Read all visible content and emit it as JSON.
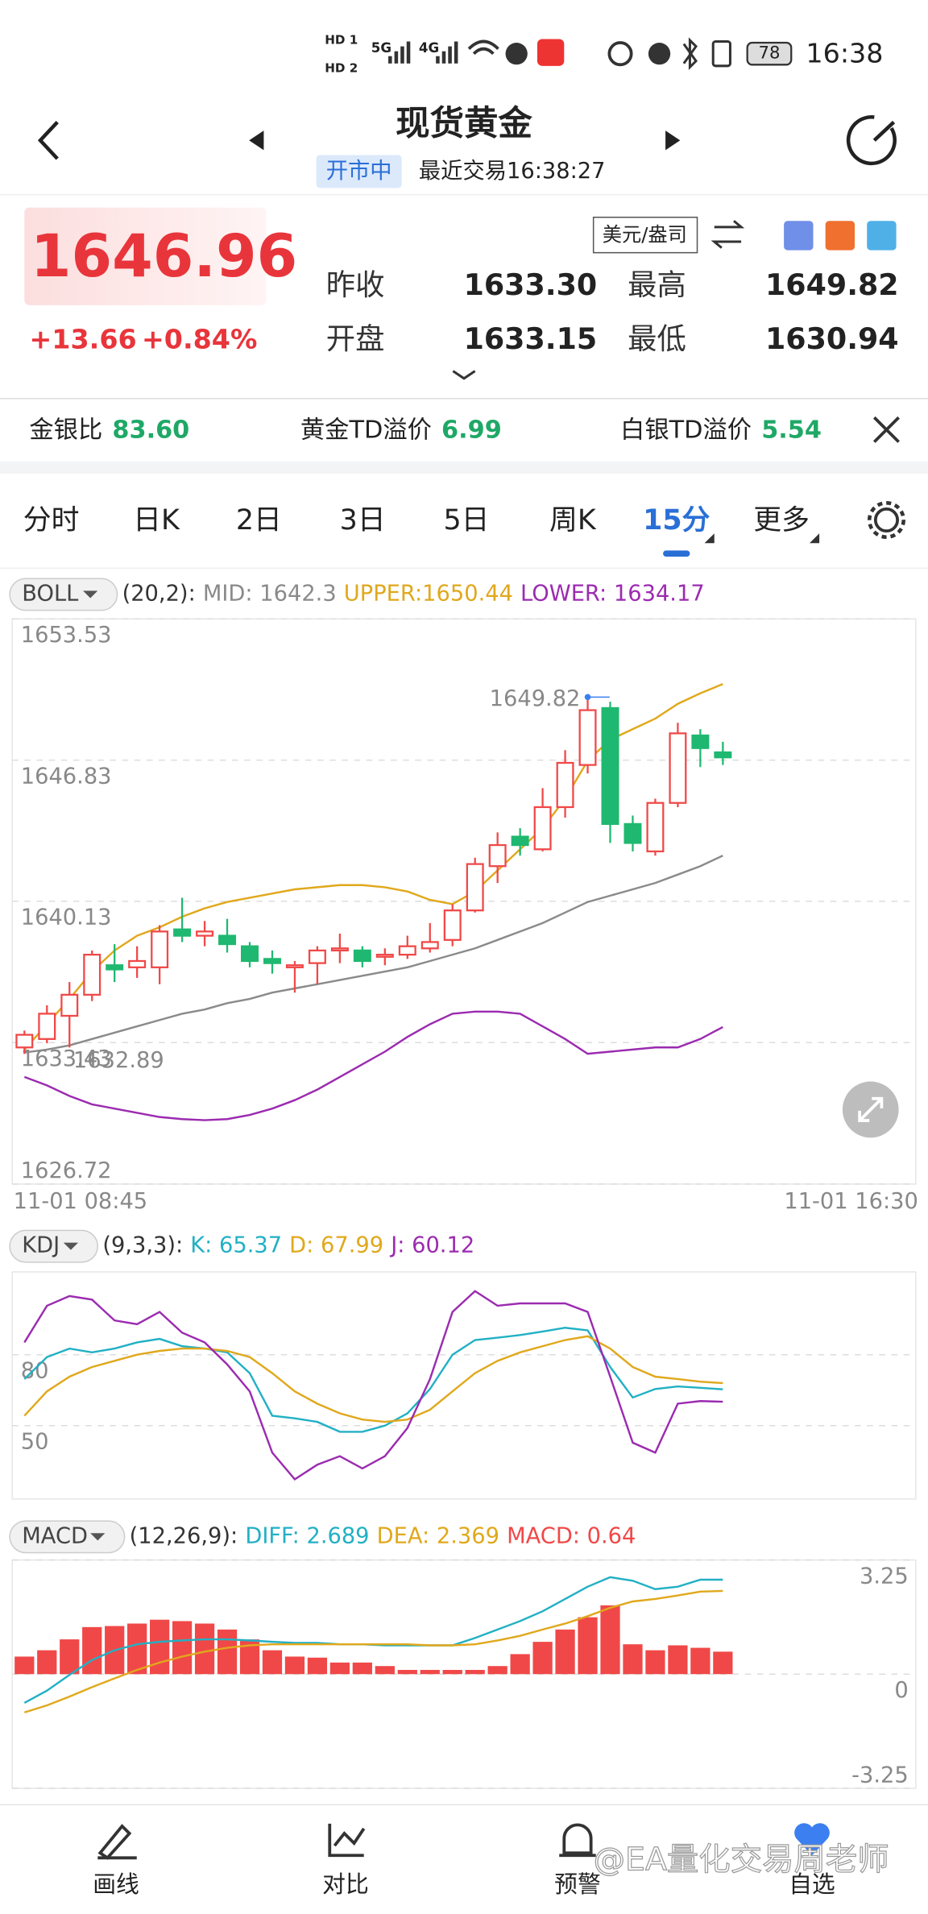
{
  "status_bar": {
    "hd1": "HD 1",
    "hd2": "HD 2",
    "net1": "5G",
    "net2": "4G",
    "battery": "78",
    "time": "16:38"
  },
  "header": {
    "title": "现货黄金",
    "status": "开市中",
    "last_trade": "最近交易16:38:27"
  },
  "quote": {
    "price": "1646.96",
    "change": "+13.66",
    "change_pct": "+0.84%",
    "unit": "美元/盎司",
    "fields": [
      {
        "label": "昨收",
        "value": "1633.30"
      },
      {
        "label": "最高",
        "value": "1649.82"
      },
      {
        "label": "开盘",
        "value": "1633.15"
      },
      {
        "label": "最低",
        "value": "1630.94"
      }
    ]
  },
  "ratios": [
    {
      "label": "金银比",
      "value": "83.60"
    },
    {
      "label": "黄金TD溢价",
      "value": "6.99"
    },
    {
      "label": "白银TD溢价",
      "value": "5.54"
    }
  ],
  "tabs": {
    "items": [
      "分时",
      "日K",
      "2日",
      "3日",
      "5日",
      "周K",
      "15分",
      "更多"
    ],
    "active": 6
  },
  "chart_data": [
    {
      "type": "candlestick",
      "indicator": "BOLL",
      "params": "(20,2):",
      "categories": [
        "11-01 08:45",
        null,
        null,
        null,
        null,
        null,
        null,
        null,
        null,
        null,
        null,
        null,
        null,
        null,
        null,
        null,
        null,
        null,
        null,
        null,
        null,
        null,
        null,
        null,
        null,
        null,
        null,
        null,
        null,
        null,
        null,
        "11-01 16:30"
      ],
      "open": [
        1633.2,
        1633.6,
        1634.7,
        1635.7,
        1637.1,
        1637.0,
        1637.0,
        1638.8,
        1638.5,
        1638.5,
        1638.0,
        1637.4,
        1637.0,
        1637.2,
        1637.8,
        1637.8,
        1637.5,
        1637.6,
        1637.9,
        1638.3,
        1639.7,
        1641.8,
        1643.2,
        1642.6,
        1644.6,
        1646.6,
        1649.3,
        1643.8,
        1642.5,
        1644.8,
        1648.0,
        1647.2
      ],
      "high": [
        1634.0,
        1635.2,
        1636.3,
        1637.8,
        1638.1,
        1638.0,
        1639.0,
        1640.3,
        1639.2,
        1639.3,
        1638.2,
        1637.8,
        1637.3,
        1638.0,
        1638.6,
        1638.0,
        1637.9,
        1638.5,
        1639.1,
        1640.0,
        1642.2,
        1643.4,
        1643.6,
        1645.5,
        1647.3,
        1649.82,
        1649.6,
        1644.2,
        1645.0,
        1648.6,
        1648.3,
        1647.7
      ],
      "low": [
        1632.89,
        1633.4,
        1633.2,
        1635.4,
        1636.3,
        1636.5,
        1636.2,
        1638.2,
        1638.0,
        1637.7,
        1637.0,
        1636.7,
        1635.8,
        1636.2,
        1637.2,
        1637.0,
        1637.1,
        1637.4,
        1637.7,
        1638.0,
        1639.6,
        1641.0,
        1642.3,
        1642.5,
        1644.1,
        1646.2,
        1642.9,
        1642.5,
        1642.3,
        1644.6,
        1646.5,
        1646.6
      ],
      "close": [
        1633.8,
        1634.8,
        1635.7,
        1637.6,
        1636.9,
        1637.3,
        1638.7,
        1638.5,
        1638.7,
        1638.1,
        1637.3,
        1637.2,
        1637.1,
        1637.8,
        1637.9,
        1637.3,
        1637.6,
        1638.0,
        1638.2,
        1639.7,
        1641.9,
        1642.8,
        1642.8,
        1644.6,
        1646.7,
        1649.2,
        1643.8,
        1642.9,
        1644.8,
        1648.1,
        1647.4,
        1646.96
      ],
      "up_color": "#f04848",
      "down_color": "#1fb870",
      "series": [
        {
          "name": "MID: 1642.3",
          "color": "#8a8a8a",
          "values": [
            1632.96,
            1633.1,
            1633.3,
            1633.6,
            1633.9,
            1634.2,
            1634.5,
            1634.8,
            1635.0,
            1635.3,
            1635.5,
            1635.8,
            1636.0,
            1636.2,
            1636.4,
            1636.6,
            1636.8,
            1637.0,
            1637.3,
            1637.6,
            1637.9,
            1638.3,
            1638.7,
            1639.1,
            1639.6,
            1640.1,
            1640.4,
            1640.7,
            1641.0,
            1641.4,
            1641.8,
            1642.3
          ]
        },
        {
          "name": "UPPER:1650.44",
          "color": "#e0a81c",
          "values": [
            1633.1,
            1634.3,
            1635.5,
            1636.8,
            1637.8,
            1638.5,
            1638.9,
            1639.4,
            1639.8,
            1640.1,
            1640.3,
            1640.5,
            1640.7,
            1640.8,
            1640.9,
            1640.9,
            1640.8,
            1640.6,
            1640.2,
            1640.0,
            1640.6,
            1641.6,
            1642.6,
            1643.6,
            1645.0,
            1646.8,
            1647.8,
            1648.3,
            1648.8,
            1649.5,
            1650.0,
            1650.44
          ]
        },
        {
          "name": "LOWER: 1634.17",
          "color": "#9b2bb0",
          "values": [
            1631.8,
            1631.4,
            1630.9,
            1630.5,
            1630.3,
            1630.1,
            1629.9,
            1629.8,
            1629.75,
            1629.8,
            1630.0,
            1630.3,
            1630.7,
            1631.2,
            1631.8,
            1632.4,
            1633.0,
            1633.7,
            1634.3,
            1634.8,
            1634.9,
            1634.9,
            1634.8,
            1634.2,
            1633.6,
            1632.9,
            1633.0,
            1633.1,
            1633.2,
            1633.2,
            1633.6,
            1634.17
          ]
        }
      ],
      "max_label": "1649.82",
      "min_label": "1632.89",
      "ylim": [
        1626.72,
        1653.53
      ],
      "yticks": [
        1653.53,
        1646.83,
        1640.13,
        1633.43,
        1626.72
      ],
      "grid": true,
      "axis_side": "left"
    },
    {
      "type": "line",
      "indicator": "KDJ",
      "params": "(9,3,3):",
      "series": [
        {
          "name": "K: 65.37",
          "color": "#22b0c4",
          "values": [
            69.7,
            79.0,
            82.6,
            81.0,
            82.6,
            85.2,
            86.7,
            83.6,
            82.6,
            81.0,
            72.2,
            54.2,
            53.1,
            51.6,
            47.4,
            47.4,
            50.0,
            55.2,
            65.5,
            80.0,
            86.2,
            87.2,
            88.3,
            89.8,
            91.4,
            90.3,
            74.8,
            61.9,
            65.5,
            66.6,
            66.0,
            65.37
          ]
        },
        {
          "name": "D: 67.99",
          "color": "#e0a81c",
          "values": [
            54.2,
            64.5,
            70.7,
            74.8,
            77.4,
            80.0,
            81.6,
            82.6,
            82.6,
            81.6,
            79.0,
            72.2,
            64.5,
            59.3,
            55.2,
            52.6,
            51.6,
            52.6,
            56.7,
            64.5,
            72.2,
            77.4,
            81.0,
            83.6,
            86.2,
            87.8,
            82.6,
            74.8,
            70.7,
            69.7,
            68.6,
            67.99
          ]
        },
        {
          "name": "J: 60.12",
          "color": "#9b2bb0",
          "values": [
            85.2,
            100.7,
            104.8,
            103.3,
            94.5,
            92.9,
            98.1,
            89.3,
            85.2,
            75.9,
            64.5,
            38.6,
            27.3,
            33.5,
            37.1,
            31.9,
            37.1,
            49.0,
            69.7,
            98.1,
            106.9,
            100.7,
            101.7,
            101.7,
            101.7,
            98.1,
            70.7,
            42.8,
            38.6,
            59.3,
            60.4,
            60.12
          ]
        }
      ],
      "ylim": [
        19,
        115
      ],
      "yticks": [
        80,
        50
      ],
      "grid": true,
      "axis_side": "left"
    },
    {
      "type": "bar",
      "indicator": "MACD",
      "params": "(12,26,9):",
      "series": [
        {
          "name": "DIFF: 2.689",
          "color": "#22b0c4",
          "kind": "line",
          "values": [
            -0.82,
            -0.47,
            -0.02,
            0.4,
            0.68,
            0.85,
            0.92,
            0.96,
            0.99,
            0.99,
            0.96,
            0.92,
            0.89,
            0.89,
            0.85,
            0.85,
            0.82,
            0.82,
            0.82,
            0.82,
            1.03,
            1.27,
            1.51,
            1.79,
            2.14,
            2.49,
            2.76,
            2.66,
            2.42,
            2.49,
            2.69,
            2.689
          ]
        },
        {
          "name": "DEA: 2.369",
          "color": "#e0a81c",
          "kind": "line",
          "values": [
            -1.09,
            -0.89,
            -0.64,
            -0.37,
            -0.12,
            0.12,
            0.33,
            0.5,
            0.64,
            0.75,
            0.82,
            0.85,
            0.85,
            0.85,
            0.85,
            0.85,
            0.85,
            0.85,
            0.82,
            0.82,
            0.85,
            0.96,
            1.09,
            1.27,
            1.44,
            1.65,
            1.89,
            2.07,
            2.14,
            2.24,
            2.35,
            2.369
          ]
        },
        {
          "name": "MACD: 0.64",
          "color": "#f04848",
          "kind": "bar",
          "values": [
            0.5,
            0.68,
            0.99,
            1.34,
            1.37,
            1.44,
            1.55,
            1.51,
            1.44,
            1.27,
            0.99,
            0.68,
            0.5,
            0.47,
            0.33,
            0.33,
            0.23,
            0.12,
            0.12,
            0.12,
            0.12,
            0.23,
            0.57,
            0.92,
            1.27,
            1.62,
            1.96,
            0.85,
            0.68,
            0.82,
            0.75,
            0.64
          ]
        }
      ],
      "ylim": [
        -3.25,
        3.25
      ],
      "yticks": [
        3.25,
        0,
        -3.25
      ],
      "grid": true,
      "axis_side": "right"
    }
  ],
  "nav": [
    "画线",
    "对比",
    "预警",
    "自选"
  ],
  "watermark": "@EA量化交易周老师"
}
